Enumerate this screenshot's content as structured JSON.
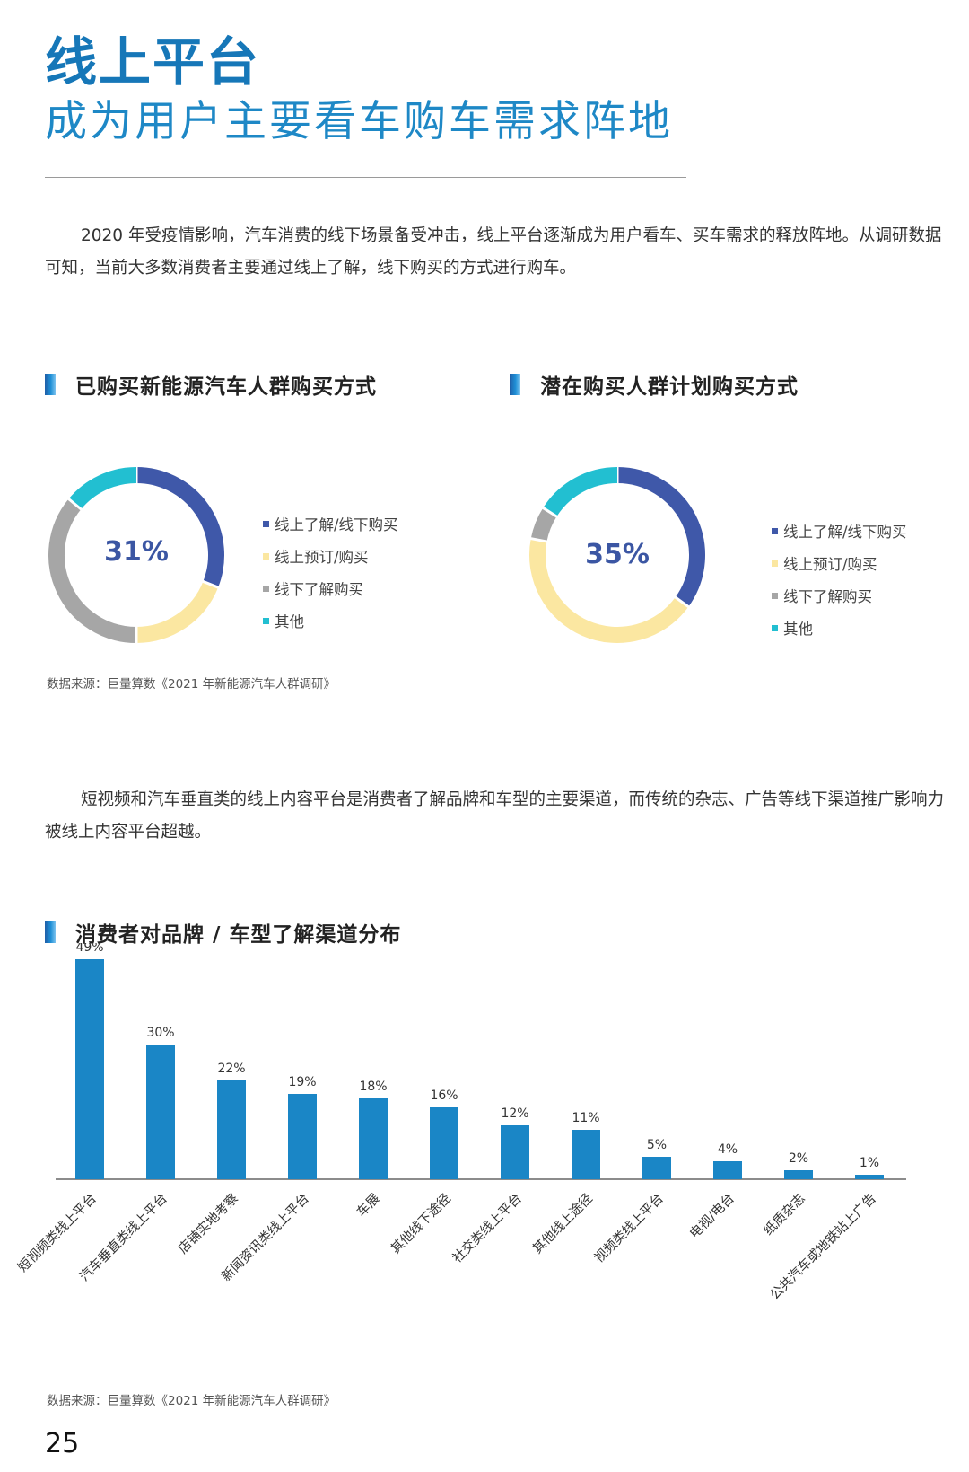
{
  "header": {
    "title": "线上平台",
    "subtitle": "成为用户主要看车购车需求阵地"
  },
  "intro_paragraph": "2020 年受疫情影响，汽车消费的线下场景备受冲击，线上平台逐渐成为用户看车、买车需求的释放阵地。从调研数据可知，当前大多数消费者主要通过线上了解，线下购买的方式进行购车。",
  "second_paragraph": "短视频和汽车垂直类的线上内容平台是消费者了解品牌和车型的主要渠道，而传统的杂志、广告等线下渠道推广影响力被线上内容平台超越。",
  "source_text": "数据来源：巨量算数《2021 年新能源汽车人群调研》",
  "page_number": "25",
  "colors": {
    "accent_blue": "#1677b8",
    "bar_blue": "#1a86c6",
    "series": [
      "#3f58a9",
      "#fbe7a1",
      "#a6a6a6",
      "#22bfd1"
    ]
  },
  "chart_data": [
    {
      "type": "pie",
      "title": "已购买新能源汽车人群购买方式",
      "center_label": "31%",
      "categories": [
        "线上了解/线下购买",
        "线上预订/购买",
        "线下了解购买",
        "其他"
      ],
      "values": [
        31,
        19,
        36,
        14
      ]
    },
    {
      "type": "pie",
      "title": "潜在购买人群计划购买方式",
      "center_label": "35%",
      "categories": [
        "线上了解/线下购买",
        "线上预订/购买",
        "线下了解购买",
        "其他"
      ],
      "values": [
        35,
        43,
        6,
        16
      ]
    },
    {
      "type": "bar",
      "title": "消费者对品牌 / 车型了解渠道分布",
      "categories": [
        "短视频类线上平台",
        "汽车垂直类线上平台",
        "店铺实地考察",
        "新闻资讯类线上平台",
        "车展",
        "其他线下途径",
        "社交类线上平台",
        "其他线上途径",
        "视频类线上平台",
        "电视/电台",
        "纸质杂志",
        "公共汽车或地铁站上广告"
      ],
      "values": [
        49,
        30,
        22,
        19,
        18,
        16,
        12,
        11,
        5,
        4,
        2,
        1
      ],
      "value_labels": [
        "49%",
        "30%",
        "22%",
        "19%",
        "18%",
        "16%",
        "12%",
        "11%",
        "5%",
        "4%",
        "2%",
        "1%"
      ],
      "ylim": [
        0,
        50
      ]
    }
  ]
}
